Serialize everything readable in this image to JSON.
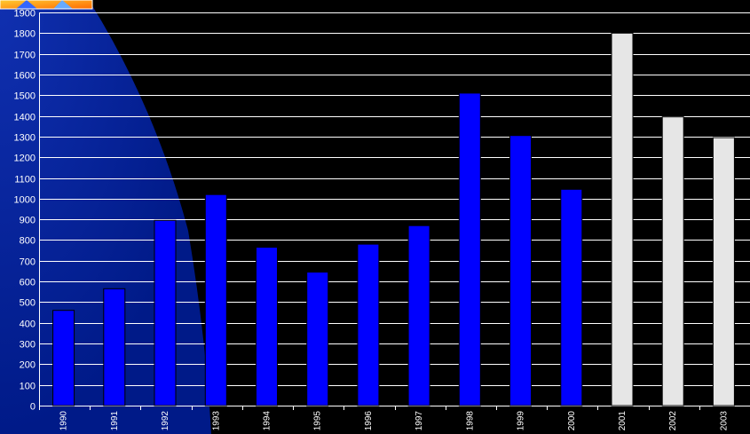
{
  "chart_data": {
    "type": "bar",
    "title": "",
    "xlabel": "",
    "ylabel": "",
    "ylim": [
      0,
      1900
    ],
    "ytick_step": 100,
    "grid": true,
    "legend": "none",
    "categories": [
      "1990",
      "1991",
      "1992",
      "1993",
      "1994",
      "1995",
      "1996",
      "1997",
      "1998",
      "1999",
      "2000",
      "2001",
      "2002",
      "2003"
    ],
    "series": [
      {
        "values": [
          460,
          565,
          895,
          1020,
          765,
          645,
          780,
          870,
          1510,
          1305,
          1045,
          1800,
          1395,
          1295
        ],
        "colors": [
          "#0000ff",
          "#0000ff",
          "#0000ff",
          "#0000ff",
          "#0000ff",
          "#0000ff",
          "#0000ff",
          "#0000ff",
          "#0000ff",
          "#0000ff",
          "#0000ff",
          "#e6e6e6",
          "#e6e6e6",
          "#e6e6e6"
        ]
      }
    ]
  },
  "background": {
    "color": "#000000",
    "decor_color": "#0a2a9a",
    "logo": "corner-logo-icon"
  }
}
